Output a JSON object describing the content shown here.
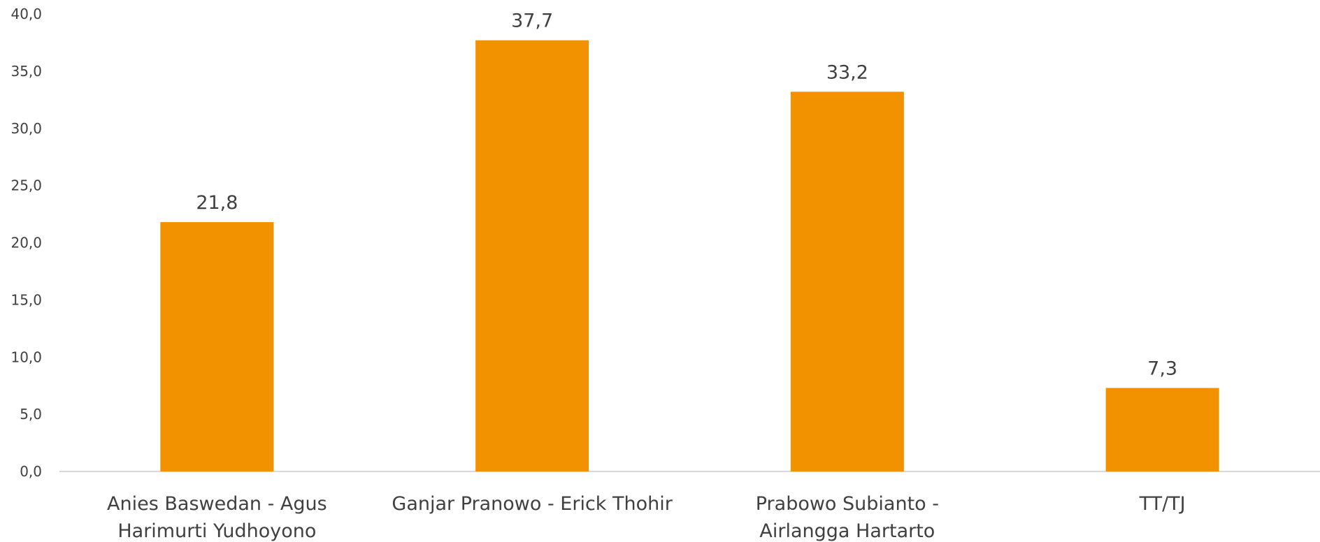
{
  "chart_data": {
    "type": "bar",
    "categories": [
      [
        "Anies Baswedan - Agus",
        "Harimurti Yudhoyono"
      ],
      [
        "Ganjar Pranowo - Erick Thohir"
      ],
      [
        "Prabowo Subianto -",
        "Airlangga Hartarto"
      ],
      [
        "TT/TJ"
      ]
    ],
    "values": [
      21.8,
      37.7,
      33.2,
      7.3
    ],
    "data_labels": [
      "21,8",
      "37,7",
      "33,2",
      "7,3"
    ],
    "y_ticks": [
      0,
      5,
      10,
      15,
      20,
      25,
      30,
      35,
      40
    ],
    "y_tick_labels": [
      "0,0",
      "5,0",
      "10,0",
      "15,0",
      "20,0",
      "25,0",
      "30,0",
      "35,0",
      "40,0"
    ],
    "ylim": [
      0,
      40
    ],
    "grid": false,
    "legend": "none",
    "bar_color": "#F39200",
    "axis_color": "#D9D9D9"
  }
}
